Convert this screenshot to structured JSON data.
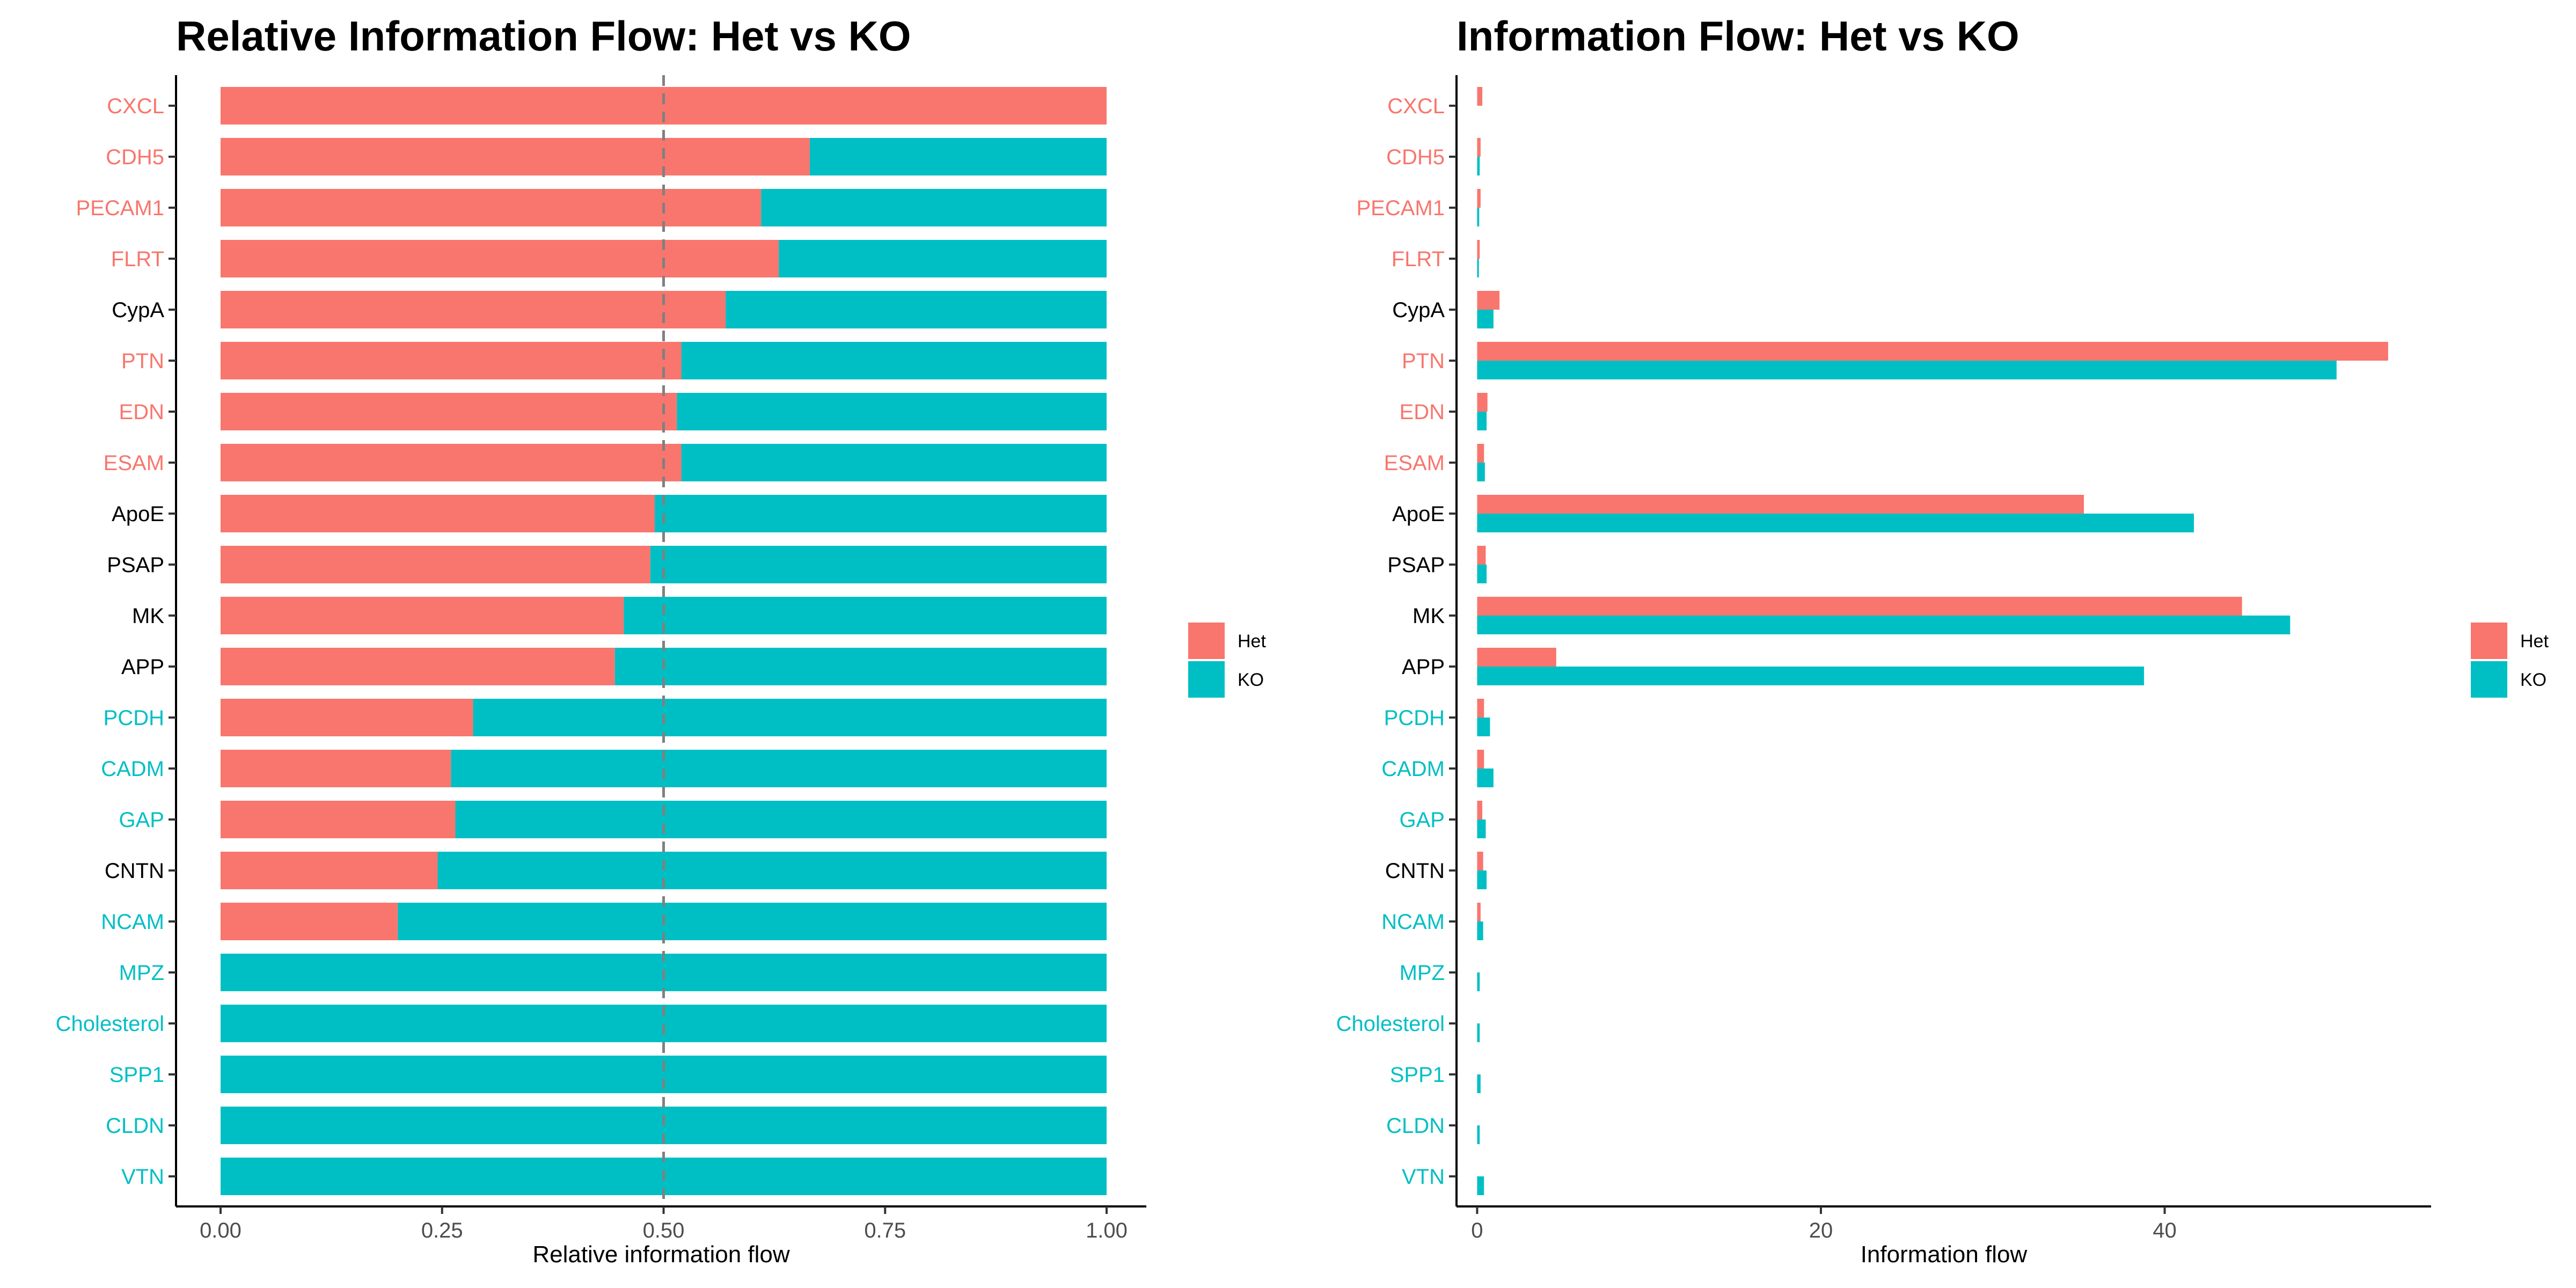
{
  "figure": {
    "legend": {
      "position": "right",
      "items": [
        {
          "name": "Het",
          "color": "#F8766D"
        },
        {
          "name": "KO",
          "color": "#00BFC4"
        }
      ]
    },
    "category_colors": {
      "Het": "#F8766D",
      "KO": "#00BFC4",
      "neutral": "#000000"
    }
  },
  "chart_data": [
    {
      "type": "bar",
      "orientation": "horizontal",
      "stacked": true,
      "title": "Relative Information Flow: Het vs KO",
      "xlabel": "Relative information flow",
      "ylabel": "",
      "xlim": [
        0,
        1
      ],
      "xticks": [
        "0.00",
        "0.25",
        "0.50",
        "0.75",
        "1.00"
      ],
      "reference_line": 0.5,
      "categories": [
        "CXCL",
        "CDH5",
        "PECAM1",
        "FLRT",
        "CypA",
        "PTN",
        "EDN",
        "ESAM",
        "ApoE",
        "PSAP",
        "MK",
        "APP",
        "PCDH",
        "CADM",
        "GAP",
        "CNTN",
        "NCAM",
        "MPZ",
        "Cholesterol",
        "SPP1",
        "CLDN",
        "VTN"
      ],
      "category_group": [
        "Het",
        "Het",
        "Het",
        "Het",
        "neutral",
        "Het",
        "Het",
        "Het",
        "neutral",
        "neutral",
        "neutral",
        "neutral",
        "KO",
        "KO",
        "KO",
        "neutral",
        "KO",
        "KO",
        "KO",
        "KO",
        "KO",
        "KO"
      ],
      "series": [
        {
          "name": "Het",
          "color": "#F8766D",
          "values": [
            1.0,
            0.665,
            0.61,
            0.63,
            0.57,
            0.52,
            0.515,
            0.52,
            0.49,
            0.485,
            0.455,
            0.445,
            0.285,
            0.26,
            0.265,
            0.245,
            0.2,
            0.0,
            0.0,
            0.0,
            0.0,
            0.0
          ]
        },
        {
          "name": "KO",
          "color": "#00BFC4",
          "values": [
            0.0,
            0.335,
            0.39,
            0.37,
            0.43,
            0.48,
            0.485,
            0.48,
            0.51,
            0.515,
            0.545,
            0.555,
            0.715,
            0.74,
            0.735,
            0.755,
            0.8,
            1.0,
            1.0,
            1.0,
            1.0,
            1.0
          ]
        }
      ]
    },
    {
      "type": "bar",
      "orientation": "horizontal",
      "grouped": true,
      "title": "Information Flow: Het vs KO",
      "xlabel": "Information flow",
      "ylabel": "",
      "xlim": [
        -1.2,
        55.5
      ],
      "xticks": [
        "0",
        "20",
        "40"
      ],
      "categories": [
        "CXCL",
        "CDH5",
        "PECAM1",
        "FLRT",
        "CypA",
        "PTN",
        "EDN",
        "ESAM",
        "ApoE",
        "PSAP",
        "MK",
        "APP",
        "PCDH",
        "CADM",
        "GAP",
        "CNTN",
        "NCAM",
        "MPZ",
        "Cholesterol",
        "SPP1",
        "CLDN",
        "VTN"
      ],
      "category_group": [
        "Het",
        "Het",
        "Het",
        "Het",
        "neutral",
        "Het",
        "Het",
        "Het",
        "neutral",
        "neutral",
        "neutral",
        "neutral",
        "KO",
        "KO",
        "KO",
        "neutral",
        "KO",
        "KO",
        "KO",
        "KO",
        "KO",
        "KO"
      ],
      "series": [
        {
          "name": "Het",
          "color": "#F8766D",
          "values": [
            0.3,
            0.2,
            0.2,
            0.15,
            1.3,
            53.0,
            0.6,
            0.4,
            35.3,
            0.5,
            44.5,
            4.6,
            0.4,
            0.4,
            0.3,
            0.35,
            0.2,
            0.0,
            0.0,
            0.0,
            0.0,
            0.0
          ]
        },
        {
          "name": "KO",
          "color": "#00BFC4",
          "values": [
            0.0,
            0.15,
            0.12,
            0.1,
            0.95,
            50.0,
            0.55,
            0.45,
            41.7,
            0.55,
            47.3,
            38.8,
            0.75,
            0.95,
            0.5,
            0.55,
            0.35,
            0.15,
            0.15,
            0.2,
            0.15,
            0.4
          ]
        }
      ]
    }
  ]
}
